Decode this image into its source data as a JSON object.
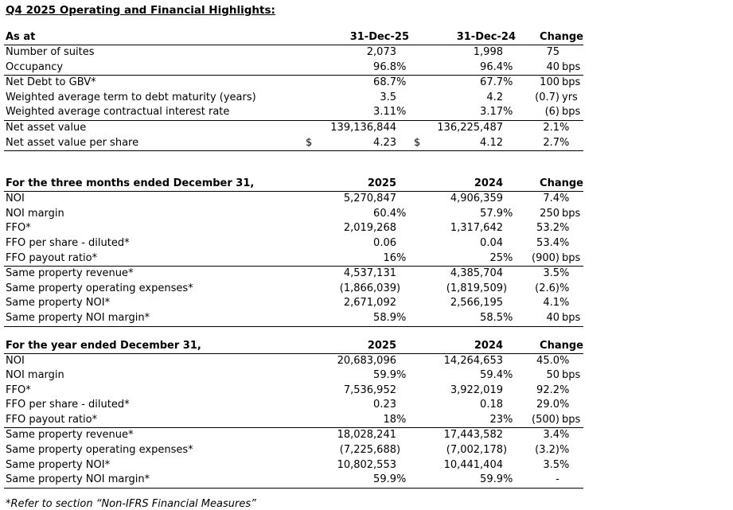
{
  "title": "Q4 2025 Operating and Financial Highlights:",
  "footnote": "*Refer to section “Non-IFRS Financial Measures”",
  "tables": [
    {
      "name": "as-at",
      "header": {
        "label": "As at",
        "col1": "31-Dec-25",
        "col2": "31-Dec-24",
        "change": "Change"
      },
      "groups": [
        {
          "rows": [
            {
              "label": "Number of suites",
              "col1": "2,073",
              "col2": "1,998",
              "change": "75"
            },
            {
              "label": "Occupancy",
              "col1": "96.8%",
              "col2": "96.4%",
              "change": "40 bps"
            }
          ]
        },
        {
          "rows": [
            {
              "label": "Net Debt to GBV*",
              "col1": "68.7%",
              "col2": "67.7%",
              "change": "100 bps"
            },
            {
              "label": "Weighted average term to debt maturity (years)",
              "col1": "3.5",
              "col2": "4.2",
              "change": "(0.7) yrs"
            },
            {
              "label": "Weighted average contractual interest rate",
              "col1": "3.11%",
              "col2": "3.17%",
              "change": "(6) bps"
            }
          ]
        },
        {
          "rows": [
            {
              "label": "Net asset value",
              "col1": "139,136,844",
              "col2": "136,225,487",
              "change": "2.1%"
            },
            {
              "label": "Net asset value per share",
              "col1": "$ 4.23",
              "col2": "$ 4.12",
              "change": "2.7%"
            }
          ]
        }
      ]
    },
    {
      "name": "three-months-ended",
      "header": {
        "label": "For the three months ended December 31,",
        "col1": "2025",
        "col2": "2024",
        "change": "Change"
      },
      "groups": [
        {
          "rows": [
            {
              "label": "NOI",
              "col1": "5,270,847",
              "col2": "4,906,359",
              "change": "7.4%"
            },
            {
              "label": "NOI margin",
              "col1": "60.4%",
              "col2": "57.9%",
              "change": "250 bps"
            },
            {
              "label": "FFO*",
              "col1": "2,019,268",
              "col2": "1,317,642",
              "change": "53.2%"
            },
            {
              "label": "FFO per share - diluted*",
              "col1": "0.06",
              "col2": "0.04",
              "change": "53.4%"
            },
            {
              "label": "FFO payout ratio*",
              "col1": "16%",
              "col2": "25%",
              "change": "(900) bps"
            }
          ]
        },
        {
          "rows": [
            {
              "label": "Same property revenue*",
              "col1": "4,537,131",
              "col2": "4,385,704",
              "change": "3.5%"
            },
            {
              "label": "Same property operating expenses*",
              "col1": "(1,866,039)",
              "col2": "(1,819,509)",
              "change": "(2.6)%"
            },
            {
              "label": "Same property NOI*",
              "col1": "2,671,092",
              "col2": "2,566,195",
              "change": "4.1%"
            },
            {
              "label": "Same property NOI margin*",
              "col1": "58.9%",
              "col2": "58.5%",
              "change": "40 bps"
            }
          ]
        }
      ]
    },
    {
      "name": "year-ended",
      "header": {
        "label": "For the year ended December 31,",
        "col1": "2025",
        "col2": "2024",
        "change": "Change"
      },
      "groups": [
        {
          "rows": [
            {
              "label": "NOI",
              "col1": "20,683,096",
              "col2": "14,264,653",
              "change": "45.0%"
            },
            {
              "label": "NOI margin",
              "col1": "59.9%",
              "col2": "59.4%",
              "change": "50 bps"
            },
            {
              "label": "FFO*",
              "col1": "7,536,952",
              "col2": "3,922,019",
              "change": "92.2%"
            },
            {
              "label": "FFO per share - diluted*",
              "col1": "0.23",
              "col2": "0.18",
              "change": "29.0%"
            },
            {
              "label": "FFO payout ratio*",
              "col1": "18%",
              "col2": "23%",
              "change": "(500) bps"
            }
          ]
        },
        {
          "rows": [
            {
              "label": "Same property revenue*",
              "col1": "18,028,241",
              "col2": "17,443,582",
              "change": "3.4%"
            },
            {
              "label": "Same property operating expenses*",
              "col1": "(7,225,688)",
              "col2": "(7,002,178)",
              "change": "(3.2)%"
            },
            {
              "label": "Same property NOI*",
              "col1": "10,802,553",
              "col2": "10,441,404",
              "change": "3.5%"
            },
            {
              "label": "Same property NOI margin*",
              "col1": "59.9%",
              "col2": "59.9%",
              "change": "-"
            }
          ]
        }
      ]
    }
  ]
}
